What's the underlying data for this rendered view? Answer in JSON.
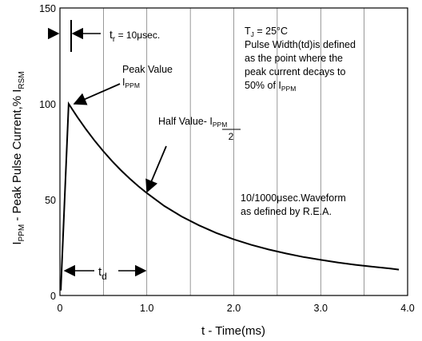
{
  "chart_data": {
    "type": "line",
    "title": "",
    "xlabel": "t - Time(ms)",
    "ylabel": {
      "main": "I",
      "sub1": "PPM",
      "mid": " - Peak Pulse Current,% I",
      "sub2": "RSM"
    },
    "xlim": [
      0,
      4.0
    ],
    "ylim": [
      0,
      150
    ],
    "x_ticks": [
      {
        "value": 0,
        "label": "0"
      },
      {
        "value": 1.0,
        "label": "1.0"
      },
      {
        "value": 2.0,
        "label": "2.0"
      },
      {
        "value": 3.0,
        "label": "3.0"
      },
      {
        "value": 4.0,
        "label": "4.0"
      }
    ],
    "y_ticks": [
      {
        "value": 0,
        "label": "0"
      },
      {
        "value": 50,
        "label": "50"
      },
      {
        "value": 100,
        "label": "100"
      },
      {
        "value": 150,
        "label": "150"
      }
    ],
    "grid": {
      "vertical": [
        0.5,
        1.0,
        1.5,
        2.0,
        2.5,
        3.0,
        3.5
      ],
      "horizontal": false
    },
    "series": [
      {
        "name": "",
        "x": [
          0.0,
          0.01,
          0.1,
          0.2,
          0.3,
          0.4,
          0.5,
          0.6,
          0.7,
          0.8,
          0.9,
          1.0,
          1.2,
          1.4,
          1.6,
          1.8,
          2.0,
          2.2,
          2.4,
          2.6,
          2.8,
          3.0,
          3.2,
          3.4,
          3.6,
          3.8,
          3.9
        ],
        "y": [
          3,
          3,
          100,
          93.1,
          86.7,
          80.7,
          75.2,
          70.1,
          65.4,
          61.1,
          57.1,
          53.4,
          46.7,
          41.2,
          36.6,
          32.6,
          29.3,
          26.4,
          24.0,
          21.9,
          20.1,
          18.6,
          17.2,
          16.0,
          15.0,
          14.1,
          13.5
        ]
      }
    ],
    "annotations": {
      "tr": {
        "t": "t",
        "sub": "r",
        "rest": " = 10μsec."
      },
      "peak": {
        "line1": "Peak Value",
        "i": "I",
        "sub": "PPM"
      },
      "half": {
        "prefix": "Half Value- ",
        "i": "I",
        "sub": "PPM",
        "denominator": "2"
      },
      "tj": {
        "t": "T",
        "sub": "J",
        "rest": " = 25°C"
      },
      "pulse_width": {
        "line1": "Pulse Width(td)is defined",
        "line2": "as the point where the",
        "line3": "peak current decays to",
        "line4_prefix": "50% of I",
        "line4_sub": "PPM"
      },
      "waveform": {
        "line1": "10/1000μsec.Waveform",
        "line2": "as defined by R.E.A."
      },
      "td": {
        "t": "t",
        "sub": "d"
      }
    }
  }
}
